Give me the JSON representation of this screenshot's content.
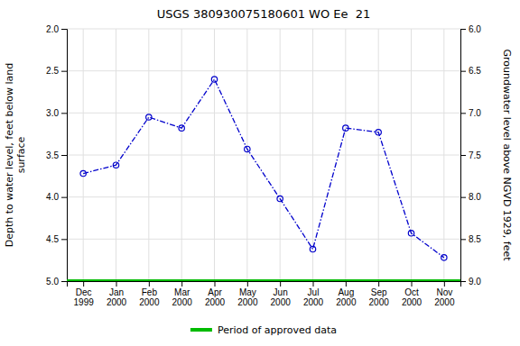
{
  "chart_data": {
    "type": "line",
    "title": "USGS 380930075180601 WO Ee  21",
    "categories": [
      "Dec\n1999",
      "Jan\n2000",
      "Feb\n2000",
      "Mar\n2000",
      "Apr\n2000",
      "May\n2000",
      "Jun\n2000",
      "Jul\n2000",
      "Aug\n2000",
      "Sep\n2000",
      "Oct\n2000",
      "Nov\n2000"
    ],
    "values": [
      3.72,
      3.62,
      3.05,
      3.18,
      2.6,
      3.43,
      4.02,
      4.62,
      3.18,
      3.23,
      4.43,
      4.72
    ],
    "color": "#0000cc",
    "marker": "open-circle",
    "line_style": "dashdot",
    "ylabel": "Depth to water level, feet below land\nsurface",
    "y2label": "Groundwater level above NGVD 1929, feet",
    "ylim": [
      5.0,
      2.0
    ],
    "yticks": [
      {
        "value": 2.0,
        "label": "2.0"
      },
      {
        "value": 2.5,
        "label": "2.5"
      },
      {
        "value": 3.0,
        "label": "3.0"
      },
      {
        "value": 3.5,
        "label": "3.5"
      },
      {
        "value": 4.0,
        "label": "4.0"
      },
      {
        "value": 4.5,
        "label": "4.5"
      },
      {
        "value": 5.0,
        "label": "5.0"
      }
    ],
    "y2lim": [
      9.0,
      6.0
    ],
    "y2ticks": [
      {
        "value": 9.0,
        "label": "9.0"
      },
      {
        "value": 8.5,
        "label": "8.5"
      },
      {
        "value": 8.0,
        "label": "8.0"
      },
      {
        "value": 7.5,
        "label": "7.5"
      },
      {
        "value": 7.0,
        "label": "7.0"
      },
      {
        "value": 6.5,
        "label": "6.5"
      },
      {
        "value": 6.0,
        "label": "6.0"
      }
    ],
    "hlines": [
      {
        "value": 5.0,
        "name": "Period of approved data",
        "color": "#00bb00"
      }
    ],
    "legend": "bottom",
    "grid": true
  }
}
